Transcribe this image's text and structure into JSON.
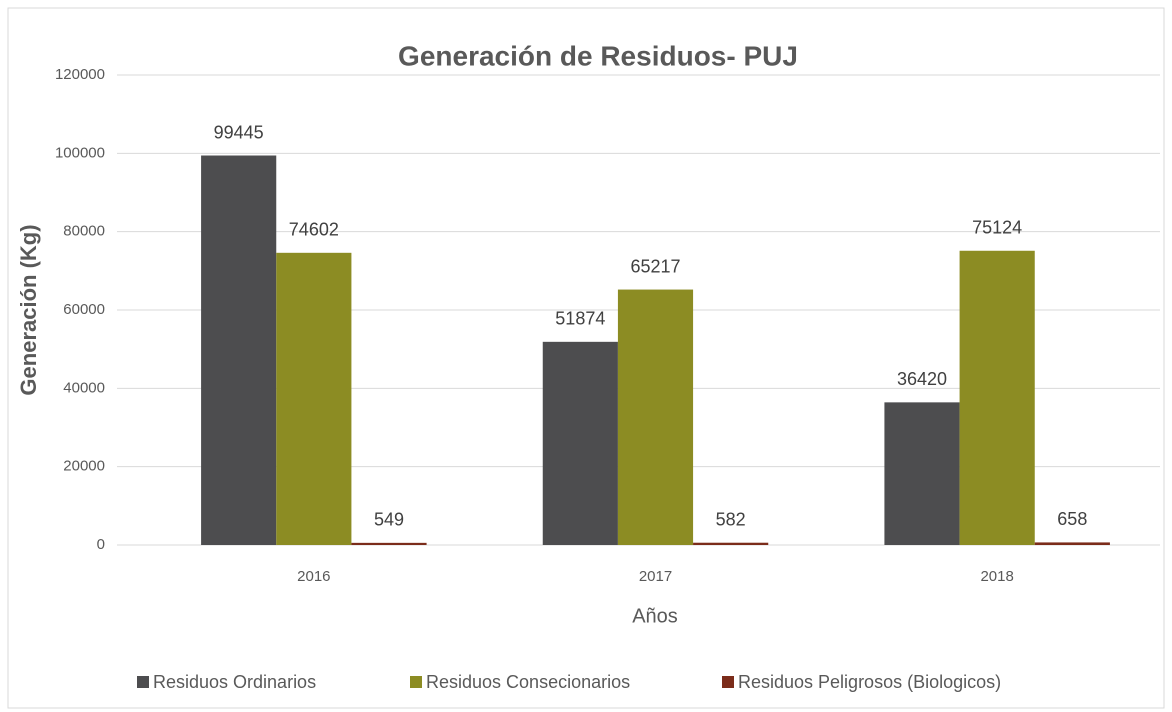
{
  "chart_data": {
    "type": "bar",
    "title": "Generación de Residuos- PUJ",
    "x_label": "Años",
    "y_label": "Generación (Kg)",
    "categories": [
      "2016",
      "2017",
      "2018"
    ],
    "series": [
      {
        "name": "Residuos Ordinarios",
        "color": "#4d4d4f",
        "values": [
          99445,
          51874,
          36420
        ]
      },
      {
        "name": "Residuos Consecionarios",
        "color": "#8c8c23",
        "values": [
          74602,
          65217,
          75124
        ]
      },
      {
        "name": "Residuos Peligrosos (Biologicos)",
        "color": "#7b2c1a",
        "values": [
          549,
          582,
          658
        ]
      }
    ],
    "ylim": [
      0,
      120000
    ],
    "yticks": [
      0,
      20000,
      40000,
      60000,
      80000,
      100000,
      120000
    ],
    "grid": true,
    "legend": "bottom"
  }
}
